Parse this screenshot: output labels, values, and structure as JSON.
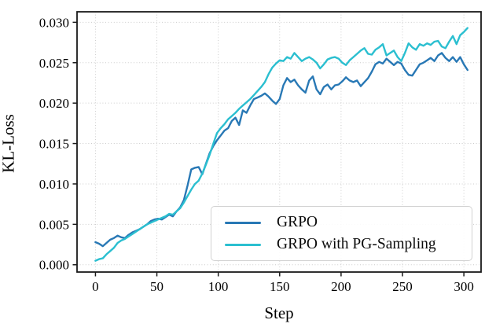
{
  "chart_data": {
    "type": "line",
    "title": "",
    "xlabel": "Step",
    "ylabel": "KL-Loss",
    "x_ticks": [
      0,
      50,
      100,
      150,
      200,
      250,
      300
    ],
    "y_ticks": [
      0.0,
      0.005,
      0.01,
      0.015,
      0.02,
      0.025,
      0.03
    ],
    "y_tick_decimals": 3,
    "xlim": [
      -15,
      314
    ],
    "ylim": [
      -0.0009,
      0.0313
    ],
    "grid": "dotted",
    "legend_position": "lower right",
    "x_step_between_points": 3,
    "x": [
      0,
      3,
      6,
      9,
      12,
      15,
      18,
      21,
      24,
      27,
      30,
      33,
      36,
      39,
      42,
      45,
      48,
      51,
      54,
      57,
      60,
      63,
      66,
      69,
      72,
      75,
      78,
      81,
      84,
      87,
      90,
      93,
      96,
      99,
      102,
      105,
      108,
      111,
      114,
      117,
      120,
      123,
      126,
      129,
      132,
      135,
      138,
      141,
      144,
      147,
      150,
      153,
      156,
      159,
      162,
      165,
      168,
      171,
      174,
      177,
      180,
      183,
      186,
      189,
      192,
      195,
      198,
      201,
      204,
      207,
      210,
      213,
      216,
      219,
      222,
      225,
      228,
      231,
      234,
      237,
      240,
      243,
      246,
      249,
      252,
      255,
      258,
      261,
      264,
      267,
      270,
      273,
      276,
      279,
      282,
      285,
      288,
      291,
      294,
      297,
      300,
      303
    ],
    "series": [
      {
        "name": "GRPO",
        "color": "#2878b5",
        "values": [
          0.0028,
          0.0026,
          0.0023,
          0.0027,
          0.0031,
          0.0033,
          0.0036,
          0.0034,
          0.0033,
          0.0037,
          0.004,
          0.0042,
          0.0044,
          0.0047,
          0.005,
          0.0054,
          0.0056,
          0.0057,
          0.0056,
          0.0059,
          0.0062,
          0.006,
          0.0066,
          0.0071,
          0.008,
          0.0098,
          0.0118,
          0.012,
          0.0121,
          0.0112,
          0.0125,
          0.0138,
          0.0147,
          0.0154,
          0.016,
          0.0166,
          0.0169,
          0.0178,
          0.0182,
          0.0173,
          0.0191,
          0.0188,
          0.0197,
          0.0205,
          0.0207,
          0.0209,
          0.0212,
          0.0208,
          0.0203,
          0.0199,
          0.0205,
          0.0222,
          0.0231,
          0.0226,
          0.0229,
          0.0222,
          0.0217,
          0.0213,
          0.0228,
          0.0233,
          0.0217,
          0.0211,
          0.022,
          0.0223,
          0.0217,
          0.0222,
          0.0223,
          0.0227,
          0.0232,
          0.0228,
          0.0226,
          0.0228,
          0.0221,
          0.0226,
          0.0231,
          0.0239,
          0.0248,
          0.0251,
          0.0249,
          0.0255,
          0.0251,
          0.0247,
          0.0251,
          0.0249,
          0.0241,
          0.0235,
          0.0234,
          0.0241,
          0.0248,
          0.025,
          0.0253,
          0.0256,
          0.0252,
          0.0259,
          0.0262,
          0.0256,
          0.0252,
          0.0257,
          0.0251,
          0.0257,
          0.0248,
          0.0241
        ]
      },
      {
        "name": "GRPO with PG-Sampling",
        "color": "#2bbfd0",
        "values": [
          0.0005,
          0.0007,
          0.0008,
          0.0013,
          0.0017,
          0.0021,
          0.0027,
          0.003,
          0.0032,
          0.0035,
          0.0038,
          0.0041,
          0.0044,
          0.0047,
          0.005,
          0.0052,
          0.0054,
          0.0056,
          0.0058,
          0.006,
          0.0063,
          0.0062,
          0.0066,
          0.007,
          0.0077,
          0.0085,
          0.0093,
          0.01,
          0.0104,
          0.0113,
          0.0124,
          0.0136,
          0.015,
          0.0163,
          0.0169,
          0.0174,
          0.018,
          0.0184,
          0.0188,
          0.0193,
          0.0197,
          0.0201,
          0.0205,
          0.021,
          0.0215,
          0.022,
          0.0226,
          0.0236,
          0.0244,
          0.0249,
          0.0253,
          0.0252,
          0.0257,
          0.0255,
          0.0262,
          0.0257,
          0.0252,
          0.0255,
          0.0257,
          0.0254,
          0.025,
          0.0243,
          0.0248,
          0.0254,
          0.0256,
          0.0257,
          0.0255,
          0.025,
          0.0247,
          0.0253,
          0.0257,
          0.0261,
          0.0265,
          0.0268,
          0.0261,
          0.026,
          0.0266,
          0.0269,
          0.0273,
          0.0259,
          0.0262,
          0.0265,
          0.0257,
          0.0252,
          0.0262,
          0.0274,
          0.0269,
          0.0266,
          0.0273,
          0.0271,
          0.0274,
          0.0272,
          0.0276,
          0.0277,
          0.027,
          0.0268,
          0.0276,
          0.0283,
          0.0273,
          0.0284,
          0.0288,
          0.0293
        ]
      }
    ],
    "style": {
      "grid_color": "#cccccc",
      "spine_color": "#1a1a1a",
      "tick_label_size": 17,
      "line_width": 2.4
    }
  }
}
